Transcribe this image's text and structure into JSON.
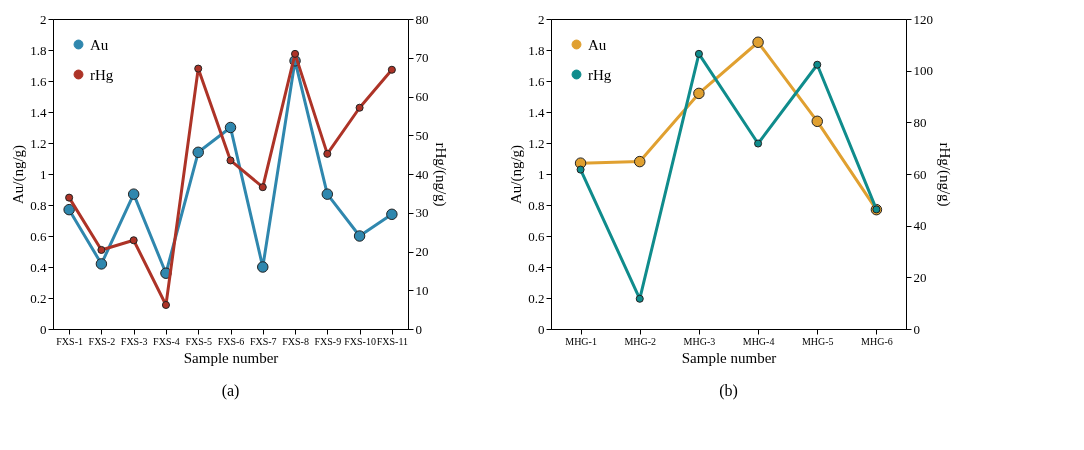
{
  "chart_data": [
    {
      "type": "line",
      "xlabel": "Sample number",
      "ylabel": "Au/(ng/g)",
      "y2label": "rHg/(ng/g)",
      "categories": [
        "FXS-1",
        "FXS-2",
        "FXS-3",
        "FXS-4",
        "FXS-5",
        "FXS-6",
        "FXS-7",
        "FXS-8",
        "FXS-9",
        "FXS-10",
        "FXS-11"
      ],
      "series": [
        {
          "name": "Au",
          "color": "#2f87ae",
          "values": [
            0.77,
            0.42,
            0.87,
            0.36,
            1.14,
            1.3,
            0.4,
            1.73,
            0.87,
            0.6,
            0.74
          ]
        },
        {
          "name": "rHg",
          "color": "#ad3327",
          "axis": "y2",
          "values": [
            33.9,
            20.4,
            22.9,
            6.2,
            67.2,
            43.5,
            36.6,
            71.0,
            45.2,
            57.1,
            66.9
          ]
        }
      ],
      "ylim": [
        0,
        2
      ],
      "yticks": [
        0,
        0.2,
        0.4,
        0.6,
        0.8,
        1,
        1.2,
        1.4,
        1.6,
        1.8,
        2
      ],
      "y2lim": [
        0,
        80
      ],
      "y2ticks": [
        0,
        10,
        20,
        30,
        40,
        50,
        60,
        70,
        80
      ],
      "marker": "circle",
      "legend": "top left",
      "grid": false,
      "annotations": [
        "(a)"
      ]
    },
    {
      "type": "line",
      "xlabel": "Sample number",
      "ylabel": "Au/(ng/g)",
      "y2label": "rHg/(ng/g)",
      "categories": [
        "MHG-1",
        "MHG-2",
        "MHG-3",
        "MHG-4",
        "MHG-5",
        "MHG-6"
      ],
      "series": [
        {
          "name": "Au",
          "color": "#e0a030",
          "values": [
            1.07,
            1.08,
            1.52,
            1.85,
            1.34,
            0.77
          ]
        },
        {
          "name": "rHg",
          "color": "#0f8c8c",
          "axis": "y2",
          "values": [
            61.7,
            11.7,
            106.5,
            71.8,
            102.3,
            46.3
          ]
        }
      ],
      "ylim": [
        0,
        2
      ],
      "yticks": [
        0,
        0.2,
        0.4,
        0.6,
        0.8,
        1,
        1.2,
        1.4,
        1.6,
        1.8,
        2
      ],
      "y2lim": [
        0,
        120
      ],
      "y2ticks": [
        0,
        20,
        40,
        60,
        80,
        100,
        120
      ],
      "marker": "circle",
      "legend": "top left",
      "grid": false,
      "annotations": [
        "(b)"
      ]
    }
  ]
}
